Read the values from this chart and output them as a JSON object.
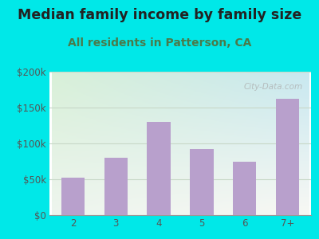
{
  "title": "Median family income by family size",
  "subtitle": "All residents in Patterson, CA",
  "categories": [
    "2",
    "3",
    "4",
    "5",
    "6",
    "7+"
  ],
  "values": [
    52000,
    80000,
    130000,
    92000,
    74000,
    162000
  ],
  "bar_color": "#b8a0cc",
  "title_color": "#222222",
  "subtitle_color": "#4a7a4a",
  "background_outer": "#00e8e8",
  "background_inner_topleft": "#d8f0d8",
  "background_inner_topright": "#c8e8f0",
  "background_inner_bottomleft": "#eef5ee",
  "background_inner_bottomright": "#f8f8f4",
  "ylim": [
    0,
    200000
  ],
  "yticks": [
    0,
    50000,
    100000,
    150000,
    200000
  ],
  "ytick_labels": [
    "$0",
    "$50k",
    "$100k",
    "$150k",
    "$200k"
  ],
  "watermark": "City-Data.com",
  "title_fontsize": 12.5,
  "subtitle_fontsize": 10,
  "tick_fontsize": 8.5,
  "grid_color": "#c8d8c8",
  "bar_width": 0.55
}
